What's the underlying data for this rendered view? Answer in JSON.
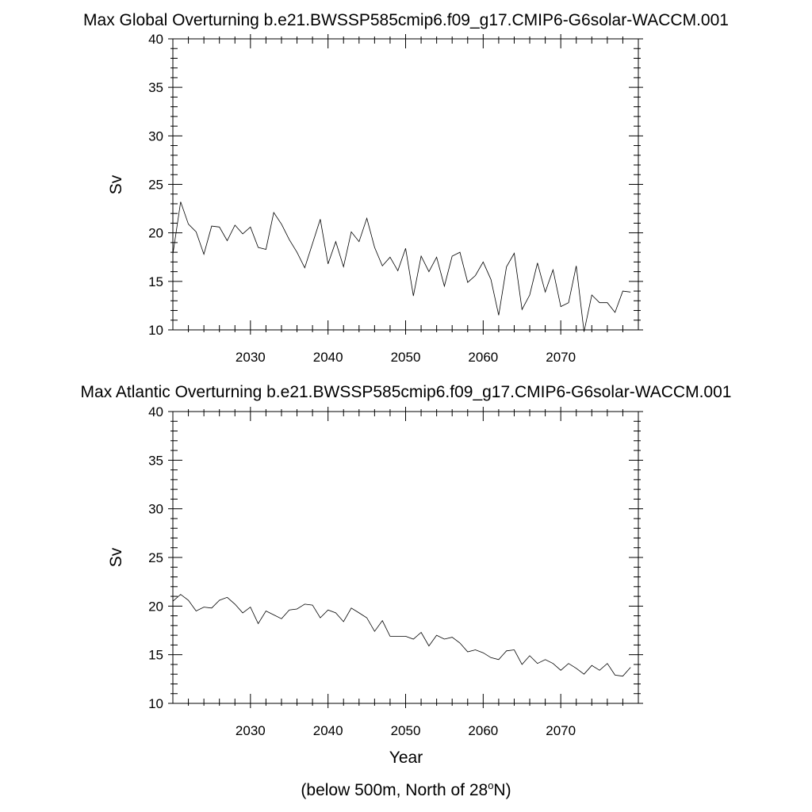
{
  "chart_data": [
    {
      "type": "line",
      "title": "Max Global Overturning b.e21.BWSSP585cmip6.f09_g17.CMIP6-G6solar-WACCM.001",
      "xlabel": "",
      "ylabel": "Sv",
      "xlim": [
        2020,
        2080
      ],
      "ylim": [
        10,
        40
      ],
      "xticks": [
        2030,
        2040,
        2050,
        2060,
        2070
      ],
      "yticks": [
        10,
        15,
        20,
        25,
        30,
        35,
        40
      ],
      "grid": false,
      "series": [
        {
          "x": [
            2020,
            2021,
            2022,
            2023,
            2024,
            2025,
            2026,
            2027,
            2028,
            2029,
            2030,
            2031,
            2032,
            2033,
            2034,
            2035,
            2036,
            2037,
            2038,
            2039,
            2040,
            2041,
            2042,
            2043,
            2044,
            2045,
            2046,
            2047,
            2048,
            2049,
            2050,
            2051,
            2052,
            2053,
            2054,
            2055,
            2056,
            2057,
            2058,
            2059,
            2060,
            2061,
            2062,
            2063,
            2064,
            2065,
            2066,
            2067,
            2068,
            2069,
            2070,
            2071,
            2072,
            2073,
            2074,
            2075,
            2076,
            2077,
            2078,
            2079
          ],
          "values": [
            17.8,
            23.2,
            20.9,
            20.1,
            17.8,
            20.7,
            20.6,
            19.2,
            20.8,
            19.9,
            20.6,
            18.5,
            18.3,
            22.1,
            20.9,
            19.3,
            18.0,
            16.4,
            18.9,
            21.4,
            16.8,
            19.1,
            16.5,
            20.1,
            19.1,
            21.5,
            18.5,
            16.6,
            17.5,
            16.1,
            18.4,
            13.5,
            17.6,
            16.0,
            17.5,
            14.5,
            17.6,
            18.0,
            14.9,
            15.6,
            17.0,
            15.2,
            11.5,
            16.5,
            17.9,
            12.1,
            13.6,
            16.9,
            13.9,
            16.2,
            12.4,
            12.8,
            16.6,
            9.8,
            13.6,
            12.8,
            12.8,
            11.8,
            14.0,
            13.9
          ]
        }
      ]
    },
    {
      "type": "line",
      "title": "Max Atlantic Overturning b.e21.BWSSP585cmip6.f09_g17.CMIP6-G6solar-WACCM.001",
      "xlabel": "Year",
      "ylabel": "Sv",
      "xlim": [
        2020,
        2080
      ],
      "ylim": [
        10,
        40
      ],
      "xticks": [
        2030,
        2040,
        2050,
        2060,
        2070
      ],
      "yticks": [
        10,
        15,
        20,
        25,
        30,
        35,
        40
      ],
      "grid": false,
      "series": [
        {
          "x": [
            2020,
            2021,
            2022,
            2023,
            2024,
            2025,
            2026,
            2027,
            2028,
            2029,
            2030,
            2031,
            2032,
            2033,
            2034,
            2035,
            2036,
            2037,
            2038,
            2039,
            2040,
            2041,
            2042,
            2043,
            2044,
            2045,
            2046,
            2047,
            2048,
            2049,
            2050,
            2051,
            2052,
            2053,
            2054,
            2055,
            2056,
            2057,
            2058,
            2059,
            2060,
            2061,
            2062,
            2063,
            2064,
            2065,
            2066,
            2067,
            2068,
            2069,
            2070,
            2071,
            2072,
            2073,
            2074,
            2075,
            2076,
            2077,
            2078,
            2079
          ],
          "values": [
            20.5,
            21.2,
            20.6,
            19.5,
            19.9,
            19.8,
            20.6,
            20.9,
            20.2,
            19.3,
            19.9,
            18.2,
            19.5,
            19.1,
            18.7,
            19.6,
            19.7,
            20.2,
            20.1,
            18.8,
            19.6,
            19.3,
            18.4,
            19.8,
            19.3,
            18.8,
            17.4,
            18.5,
            16.9,
            16.9,
            16.9,
            16.6,
            17.3,
            15.9,
            17.0,
            16.6,
            16.8,
            16.2,
            15.3,
            15.5,
            15.2,
            14.7,
            14.5,
            15.4,
            15.5,
            14.0,
            14.9,
            14.1,
            14.5,
            14.1,
            13.4,
            14.1,
            13.6,
            13.0,
            13.9,
            13.4,
            14.1,
            12.9,
            12.8,
            13.7
          ]
        }
      ]
    }
  ],
  "footnote": {
    "prefix": "(below 500m, North of 28",
    "superscript": "o",
    "suffix": "N)"
  }
}
